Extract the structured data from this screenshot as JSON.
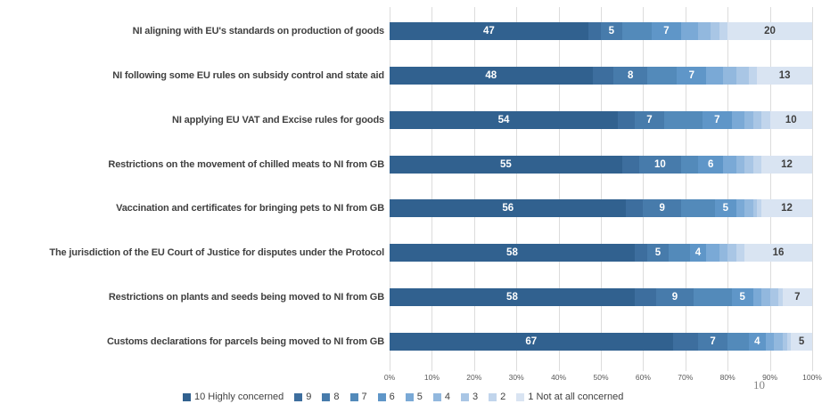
{
  "page": {
    "number": "10"
  },
  "chart_data": {
    "type": "bar",
    "orientation": "horizontal-stacked",
    "title": "",
    "xlabel": "",
    "ylabel": "",
    "xlim": [
      0,
      100
    ],
    "x_ticks": [
      "0%",
      "10%",
      "20%",
      "30%",
      "40%",
      "50%",
      "60%",
      "70%",
      "80%",
      "90%",
      "100%"
    ],
    "grid": true,
    "legend_position": "bottom",
    "categories": [
      "NI aligning with EU's standards on production of goods",
      "NI following some EU rules on subsidy control and state aid",
      "NI applying EU VAT and Excise rules for goods",
      "Restrictions on the movement of chilled meats to NI from GB",
      "Vaccination and certificates for bringing pets to NI from GB",
      "The jurisdiction of the EU Court of Justice for disputes under  the Protocol",
      "Restrictions on plants and seeds being moved to NI from GB",
      "Customs declarations for parcels being moved to NI from GB"
    ],
    "series": [
      {
        "name": "10 Highly concerned",
        "color": "#31618F",
        "labels_shown": true,
        "label_color": "#ffffff",
        "values": [
          47,
          48,
          54,
          55,
          56,
          58,
          58,
          67
        ]
      },
      {
        "name": "9",
        "color": "#3D6E9E",
        "labels_shown": false,
        "label_color": "#ffffff",
        "values": [
          3,
          5,
          4,
          4,
          4,
          3,
          5,
          6
        ]
      },
      {
        "name": "8",
        "color": "#477BAB",
        "labels_shown": true,
        "label_color": "#ffffff",
        "values": [
          5,
          8,
          7,
          10,
          9,
          5,
          9,
          7
        ]
      },
      {
        "name": "7",
        "color": "#538ABA",
        "labels_shown": false,
        "label_color": "#ffffff",
        "values": [
          7,
          7,
          9,
          4,
          8,
          5,
          9,
          5
        ]
      },
      {
        "name": "6",
        "color": "#5F96C8",
        "labels_shown": true,
        "label_color": "#ffffff",
        "values": [
          7,
          7,
          7,
          6,
          5,
          4,
          5,
          4
        ]
      },
      {
        "name": "5",
        "color": "#7AA9D6",
        "labels_shown": false,
        "label_color": "#ffffff",
        "values": [
          4,
          4,
          3,
          3,
          2,
          3,
          2,
          2
        ]
      },
      {
        "name": "4",
        "color": "#92B8DE",
        "labels_shown": false,
        "label_color": "#ffffff",
        "values": [
          3,
          3,
          2,
          2,
          2,
          2,
          2,
          2
        ]
      },
      {
        "name": "3",
        "color": "#A9C6E5",
        "labels_shown": false,
        "label_color": "#ffffff",
        "values": [
          2,
          3,
          2,
          2,
          1,
          2,
          2,
          1
        ]
      },
      {
        "name": "2",
        "color": "#C1D5EC",
        "labels_shown": false,
        "label_color": "#ffffff",
        "values": [
          2,
          2,
          2,
          2,
          1,
          2,
          1,
          1
        ]
      },
      {
        "name": "1 Not at all concerned",
        "color": "#D9E4F2",
        "labels_shown": true,
        "label_color": "#404040",
        "values": [
          20,
          13,
          10,
          12,
          12,
          16,
          7,
          5
        ]
      }
    ]
  }
}
